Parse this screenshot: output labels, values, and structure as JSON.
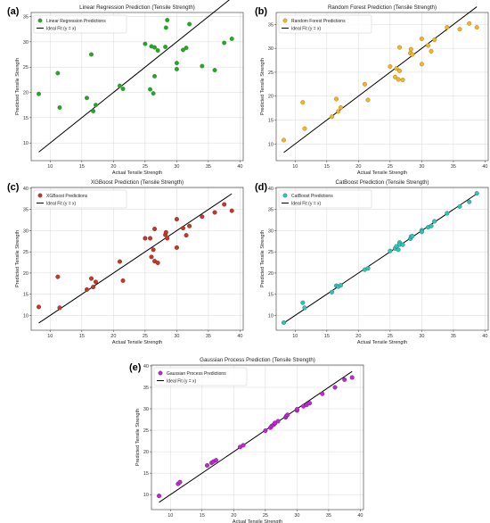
{
  "chart_data": [
    {
      "panel_label": "(a)",
      "type": "scatter",
      "title": "Linear Regression Prediction (Tensile Strength)",
      "xlabel": "Actual Tensile Strength",
      "ylabel": "Predicted Tensile Strength",
      "xlim": [
        7,
        40.5
      ],
      "ylim": [
        6.5,
        35.8
      ],
      "xticks": [
        10,
        15,
        20,
        25,
        30,
        35,
        40
      ],
      "yticks": [
        10,
        15,
        20,
        25,
        30,
        35
      ],
      "grid": true,
      "legend_position": "top-left",
      "series": [
        {
          "name": "Linear Regression Predictions",
          "color": "#2ca02c",
          "edgecolor": "#2ca02c",
          "points": [
            [
              8.2,
              19.7
            ],
            [
              11.2,
              23.8
            ],
            [
              11.5,
              17.0
            ],
            [
              15.8,
              18.9
            ],
            [
              16.5,
              27.5
            ],
            [
              16.8,
              16.3
            ],
            [
              17.2,
              17.5
            ],
            [
              21.0,
              21.3
            ],
            [
              21.5,
              20.7
            ],
            [
              25.0,
              29.6
            ],
            [
              25.8,
              20.6
            ],
            [
              26.0,
              29.1
            ],
            [
              26.3,
              19.8
            ],
            [
              26.5,
              23.2
            ],
            [
              26.5,
              28.9
            ],
            [
              27.0,
              28.3
            ],
            [
              28.2,
              29.0
            ],
            [
              28.3,
              32.8
            ],
            [
              28.5,
              34.3
            ],
            [
              30.0,
              24.6
            ],
            [
              30.0,
              25.8
            ],
            [
              31.0,
              28.4
            ],
            [
              31.5,
              28.8
            ],
            [
              32.0,
              33.5
            ],
            [
              34.0,
              25.2
            ],
            [
              36.0,
              24.4
            ],
            [
              37.5,
              29.8
            ],
            [
              38.7,
              30.6
            ]
          ]
        }
      ],
      "ideal_line": {
        "name": "Ideal Fit (y = x)",
        "from": 8.2,
        "to": 38.7,
        "color": "#000000"
      }
    },
    {
      "panel_label": "(b)",
      "type": "scatter",
      "title": "Random Forest Prediction (Tensile Strength)",
      "xlabel": "Actual Tensile Strength",
      "ylabel": "Predicted Tensile Strength",
      "xlim": [
        7,
        40.5
      ],
      "ylim": [
        6.5,
        37.5
      ],
      "xticks": [
        10,
        15,
        20,
        25,
        30,
        35,
        40
      ],
      "yticks": [
        10,
        15,
        20,
        25,
        30,
        35
      ],
      "grid": true,
      "legend_position": "top-left",
      "series": [
        {
          "name": "Random Forest Predictions",
          "color": "#f0b429",
          "edgecolor": "#a0701a",
          "points": [
            [
              8.2,
              10.8
            ],
            [
              11.2,
              18.7
            ],
            [
              11.5,
              13.2
            ],
            [
              15.8,
              15.7
            ],
            [
              16.5,
              19.4
            ],
            [
              16.8,
              16.8
            ],
            [
              17.2,
              17.6
            ],
            [
              21.0,
              22.5
            ],
            [
              21.5,
              19.2
            ],
            [
              25.0,
              26.2
            ],
            [
              25.8,
              24.0
            ],
            [
              26.0,
              25.8
            ],
            [
              26.3,
              23.5
            ],
            [
              26.5,
              30.2
            ],
            [
              26.5,
              25.3
            ],
            [
              27.0,
              23.4
            ],
            [
              28.2,
              29.0
            ],
            [
              28.3,
              29.8
            ],
            [
              28.5,
              28.7
            ],
            [
              30.0,
              32.0
            ],
            [
              30.0,
              26.7
            ],
            [
              31.0,
              30.6
            ],
            [
              31.5,
              29.4
            ],
            [
              32.0,
              31.8
            ],
            [
              34.0,
              34.4
            ],
            [
              36.0,
              34.0
            ],
            [
              37.5,
              35.2
            ],
            [
              38.7,
              34.4
            ]
          ]
        }
      ],
      "ideal_line": {
        "name": "Ideal Fit (y = x)",
        "from": 8.2,
        "to": 38.7,
        "color": "#000000"
      }
    },
    {
      "panel_label": "(c)",
      "type": "scatter",
      "title": "XGBoost Prediction (Tensile Strength)",
      "xlabel": "Actual Tensile Strength",
      "ylabel": "Predicted Tensile Strength",
      "xlim": [
        7,
        40.5
      ],
      "ylim": [
        6.5,
        40.2
      ],
      "xticks": [
        10,
        15,
        20,
        25,
        30,
        35,
        40
      ],
      "yticks": [
        10,
        15,
        20,
        25,
        30,
        35,
        40
      ],
      "grid": true,
      "legend_position": "top-left",
      "series": [
        {
          "name": "XGBoost Predictions",
          "color": "#c0392b",
          "edgecolor": "#7b1f1a",
          "points": [
            [
              8.2,
              12.0
            ],
            [
              11.2,
              19.1
            ],
            [
              11.5,
              11.8
            ],
            [
              15.8,
              16.1
            ],
            [
              16.5,
              18.7
            ],
            [
              16.8,
              16.7
            ],
            [
              17.2,
              17.9
            ],
            [
              21.0,
              22.7
            ],
            [
              21.5,
              18.2
            ],
            [
              25.0,
              28.2
            ],
            [
              25.8,
              28.2
            ],
            [
              26.0,
              23.8
            ],
            [
              26.3,
              25.5
            ],
            [
              26.5,
              30.4
            ],
            [
              26.5,
              22.8
            ],
            [
              27.0,
              22.4
            ],
            [
              28.2,
              29.0
            ],
            [
              28.3,
              29.6
            ],
            [
              28.5,
              28.2
            ],
            [
              30.0,
              32.7
            ],
            [
              30.0,
              26.0
            ],
            [
              31.0,
              30.6
            ],
            [
              31.5,
              28.9
            ],
            [
              32.0,
              31.1
            ],
            [
              34.0,
              33.3
            ],
            [
              36.0,
              34.3
            ],
            [
              37.5,
              36.2
            ],
            [
              38.7,
              34.7
            ]
          ]
        }
      ],
      "ideal_line": {
        "name": "Ideal Fit (y = x)",
        "from": 8.2,
        "to": 38.7,
        "color": "#000000"
      }
    },
    {
      "panel_label": "(d)",
      "type": "scatter",
      "title": "CatBoost Prediction (Tensile Strength)",
      "xlabel": "Actual Tensile Strength",
      "ylabel": "Predicted Tensile Strength",
      "xlim": [
        7,
        40.5
      ],
      "ylim": [
        6.5,
        40.2
      ],
      "xticks": [
        10,
        15,
        20,
        25,
        30,
        35,
        40
      ],
      "yticks": [
        10,
        15,
        20,
        25,
        30,
        35,
        40
      ],
      "grid": true,
      "legend_position": "top-left",
      "series": [
        {
          "name": "CatBoost Predictions",
          "color": "#2ec4b6",
          "edgecolor": "#1a6b64",
          "points": [
            [
              8.2,
              8.3
            ],
            [
              11.2,
              13.0
            ],
            [
              11.5,
              11.8
            ],
            [
              15.8,
              15.5
            ],
            [
              16.5,
              17.0
            ],
            [
              16.8,
              16.8
            ],
            [
              17.2,
              17.1
            ],
            [
              21.0,
              20.8
            ],
            [
              21.5,
              21.1
            ],
            [
              25.0,
              25.2
            ],
            [
              25.8,
              25.8
            ],
            [
              26.0,
              26.3
            ],
            [
              26.3,
              25.5
            ],
            [
              26.5,
              27.2
            ],
            [
              26.5,
              26.7
            ],
            [
              27.0,
              26.7
            ],
            [
              28.2,
              28.1
            ],
            [
              28.3,
              28.6
            ],
            [
              28.5,
              28.7
            ],
            [
              30.0,
              30.1
            ],
            [
              30.0,
              29.7
            ],
            [
              31.0,
              30.8
            ],
            [
              31.5,
              31.1
            ],
            [
              32.0,
              32.2
            ],
            [
              34.0,
              34.1
            ],
            [
              36.0,
              35.7
            ],
            [
              37.5,
              36.8
            ],
            [
              38.7,
              38.8
            ]
          ]
        }
      ],
      "ideal_line": {
        "name": "Ideal Fit (y = x)",
        "from": 8.2,
        "to": 38.7,
        "color": "#000000"
      }
    },
    {
      "panel_label": "(e)",
      "type": "scatter",
      "title": "Gaussian Process Prediction (Tensile Strength)",
      "xlabel": "Actual Tensile Strength",
      "ylabel": "Predicted Tensile Strength",
      "xlim": [
        7,
        40.5
      ],
      "ylim": [
        6.5,
        40.2
      ],
      "xticks": [
        10,
        15,
        20,
        25,
        30,
        35,
        40
      ],
      "yticks": [
        10,
        15,
        20,
        25,
        30,
        35,
        40
      ],
      "grid": true,
      "legend_position": "top-left",
      "series": [
        {
          "name": "Gaussian Process Predictions",
          "color": "#c026d3",
          "edgecolor": "#6b1176",
          "points": [
            [
              8.2,
              9.7
            ],
            [
              11.2,
              12.5
            ],
            [
              11.5,
              12.9
            ],
            [
              15.8,
              16.8
            ],
            [
              16.5,
              17.4
            ],
            [
              16.8,
              17.7
            ],
            [
              17.2,
              18.0
            ],
            [
              21.0,
              21.1
            ],
            [
              21.5,
              21.5
            ],
            [
              25.0,
              24.9
            ],
            [
              25.8,
              25.6
            ],
            [
              26.0,
              26.0
            ],
            [
              26.3,
              26.3
            ],
            [
              26.5,
              26.6
            ],
            [
              26.5,
              26.7
            ],
            [
              27.0,
              27.1
            ],
            [
              28.2,
              28.0
            ],
            [
              28.3,
              28.3
            ],
            [
              28.5,
              28.6
            ],
            [
              30.0,
              29.6
            ],
            [
              30.0,
              29.9
            ],
            [
              31.0,
              30.6
            ],
            [
              31.5,
              30.9
            ],
            [
              32.0,
              31.3
            ],
            [
              34.0,
              33.5
            ],
            [
              36.0,
              35.0
            ],
            [
              37.5,
              36.8
            ],
            [
              38.7,
              37.3
            ]
          ]
        }
      ],
      "ideal_line": {
        "name": "Ideal Fit (y = x)",
        "from": 8.2,
        "to": 38.7,
        "color": "#000000"
      }
    }
  ]
}
